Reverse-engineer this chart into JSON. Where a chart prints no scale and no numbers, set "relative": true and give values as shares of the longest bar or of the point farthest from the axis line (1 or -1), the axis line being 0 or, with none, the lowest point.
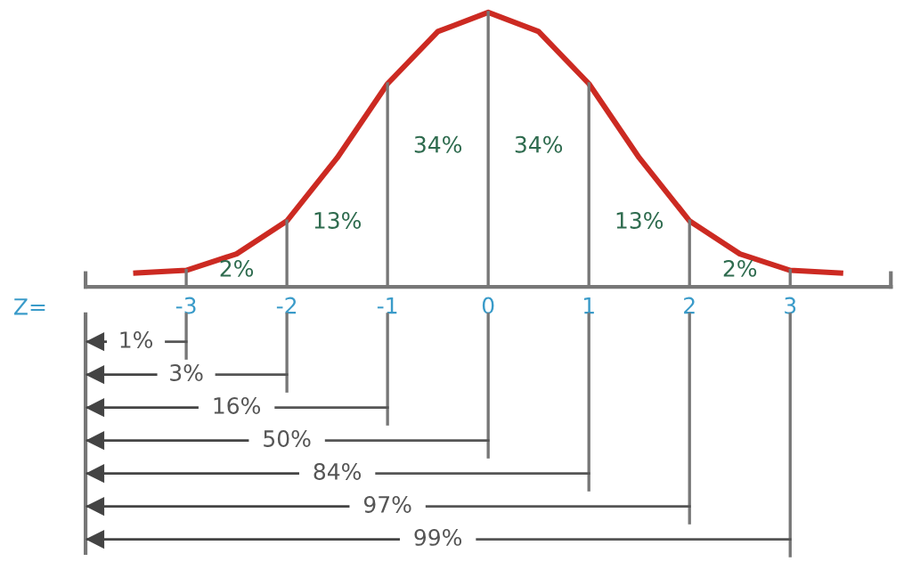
{
  "chart_data": {
    "type": "line",
    "relative": true,
    "xlabel": "Z=",
    "xlim": [
      -4,
      4
    ],
    "xticks": [
      -3,
      -2,
      -1,
      0,
      1,
      2,
      3
    ],
    "series": [
      {
        "color": "#cc2a22",
        "x": [
          -3.5,
          -3,
          -2.5,
          -2,
          -1.5,
          -1,
          -0.5,
          0,
          0.5,
          1,
          1.5,
          2,
          2.5,
          3,
          3.5
        ],
        "values": [
          0.05,
          0.06,
          0.12,
          0.24,
          0.47,
          0.74,
          0.93,
          1,
          0.93,
          0.74,
          0.47,
          0.24,
          0.12,
          0.06,
          0.05
        ]
      }
    ],
    "grid": "x",
    "annotations": [
      "2%",
      "13%",
      "34%",
      "34%",
      "13%",
      "2%",
      "1%",
      "3%",
      "16%",
      "50%",
      "84%",
      "97%",
      "99%"
    ]
  }
}
